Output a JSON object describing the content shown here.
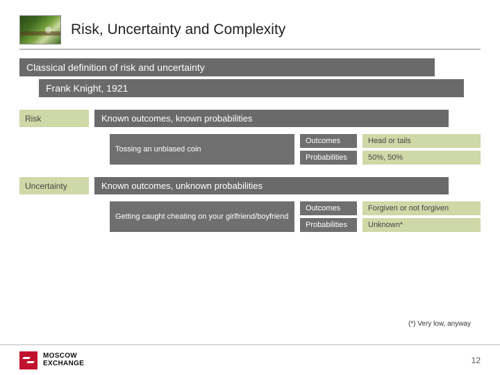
{
  "colors": {
    "bar_dark": "#6a6a6a",
    "bar_mid": "#6f6f6f",
    "tag_bg": "#cfd8a7",
    "tag_text": "#444444",
    "hr": "#b9b9b9",
    "logo_red": "#c2112e",
    "text": "#222222"
  },
  "title": "Risk, Uncertainty and Complexity",
  "heading": "Classical definition of risk and uncertainty",
  "subheading": "Frank Knight, 1921",
  "risk": {
    "label": "Risk",
    "definition": "Known outcomes, known probabilities",
    "example": "Tossing an unbiased coin",
    "outcomes_key": "Outcomes",
    "outcomes_val": "Head or tails",
    "prob_key": "Probabilities",
    "prob_val": "50%, 50%"
  },
  "uncertainty": {
    "label": "Uncertainty",
    "definition": "Known outcomes, unknown probabilities",
    "example": "Getting caught cheating on your girlfriend/boyfriend",
    "outcomes_key": "Outcomes",
    "outcomes_val": "Forgiven or not forgiven",
    "prob_key": "Probabilities",
    "prob_val": "Unknown*"
  },
  "footnote": "(*) Very low, anyway",
  "footer": {
    "brand_line1": "MOSCOW",
    "brand_line2": "EXCHANGE",
    "page": "12"
  }
}
